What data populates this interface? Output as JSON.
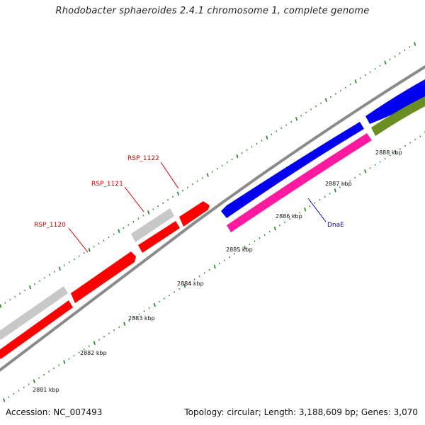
{
  "title": "Rhodobacter sphaeroides 2.4.1 chromosome 1, complete genome",
  "accession": "Accession: NC_007493",
  "summary": "Topology: circular; Length: 3,188,609 bp; Genes: 3,070",
  "colors": {
    "forward_backbone": "#8a8a8a",
    "reverse_backbone": "#8a8a8a",
    "gene_red": "#ff0000",
    "gene_gray": "#c8c8c8",
    "gene_blue": "#0000ee",
    "gene_magenta": "#ff1aa0",
    "gene_olive": "#6b8e23",
    "tick_green": "#2e8b2e",
    "label_red": "#cc0000",
    "label_blue": "#0000cc"
  },
  "kbp_labels": [
    "2881 kbp",
    "2882 kbp",
    "2883 kbp",
    "2884 kbp",
    "2885 kbp",
    "2886 kbp",
    "2887 kbp",
    "2888 kbp"
  ],
  "gene_labels": [
    {
      "text": "RSP_1120",
      "color": "red"
    },
    {
      "text": "RSP_1121",
      "color": "red"
    },
    {
      "text": "RSP_1122",
      "color": "red"
    },
    {
      "text": "DnaE",
      "color": "blue"
    }
  ]
}
